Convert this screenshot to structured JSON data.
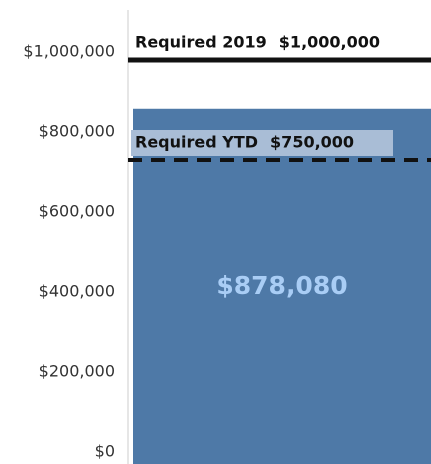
{
  "chart_data": {
    "type": "bar",
    "categories": [
      null
    ],
    "values": [
      878080
    ],
    "value_labels": [
      "$878,080"
    ],
    "color": "#4e79a7",
    "value_label_color": "#a9cdf5",
    "ylim": [
      0,
      1125000
    ],
    "yticks": [
      {
        "value": 0,
        "label": "$0"
      },
      {
        "value": 200000,
        "label": "$200,000"
      },
      {
        "value": 400000,
        "label": "$400,000"
      },
      {
        "value": 600000,
        "label": "$600,000"
      },
      {
        "value": 800000,
        "label": "$800,000"
      },
      {
        "value": 1000000,
        "label": "$1,000,000"
      }
    ],
    "grid": false,
    "reference_lines": [
      {
        "label": "Required 2019",
        "value": 1000000,
        "value_label": "$1,000,000",
        "style": "solid"
      },
      {
        "label": "Required YTD",
        "value": 750000,
        "value_label": "$750,000",
        "style": "dashed"
      }
    ]
  }
}
